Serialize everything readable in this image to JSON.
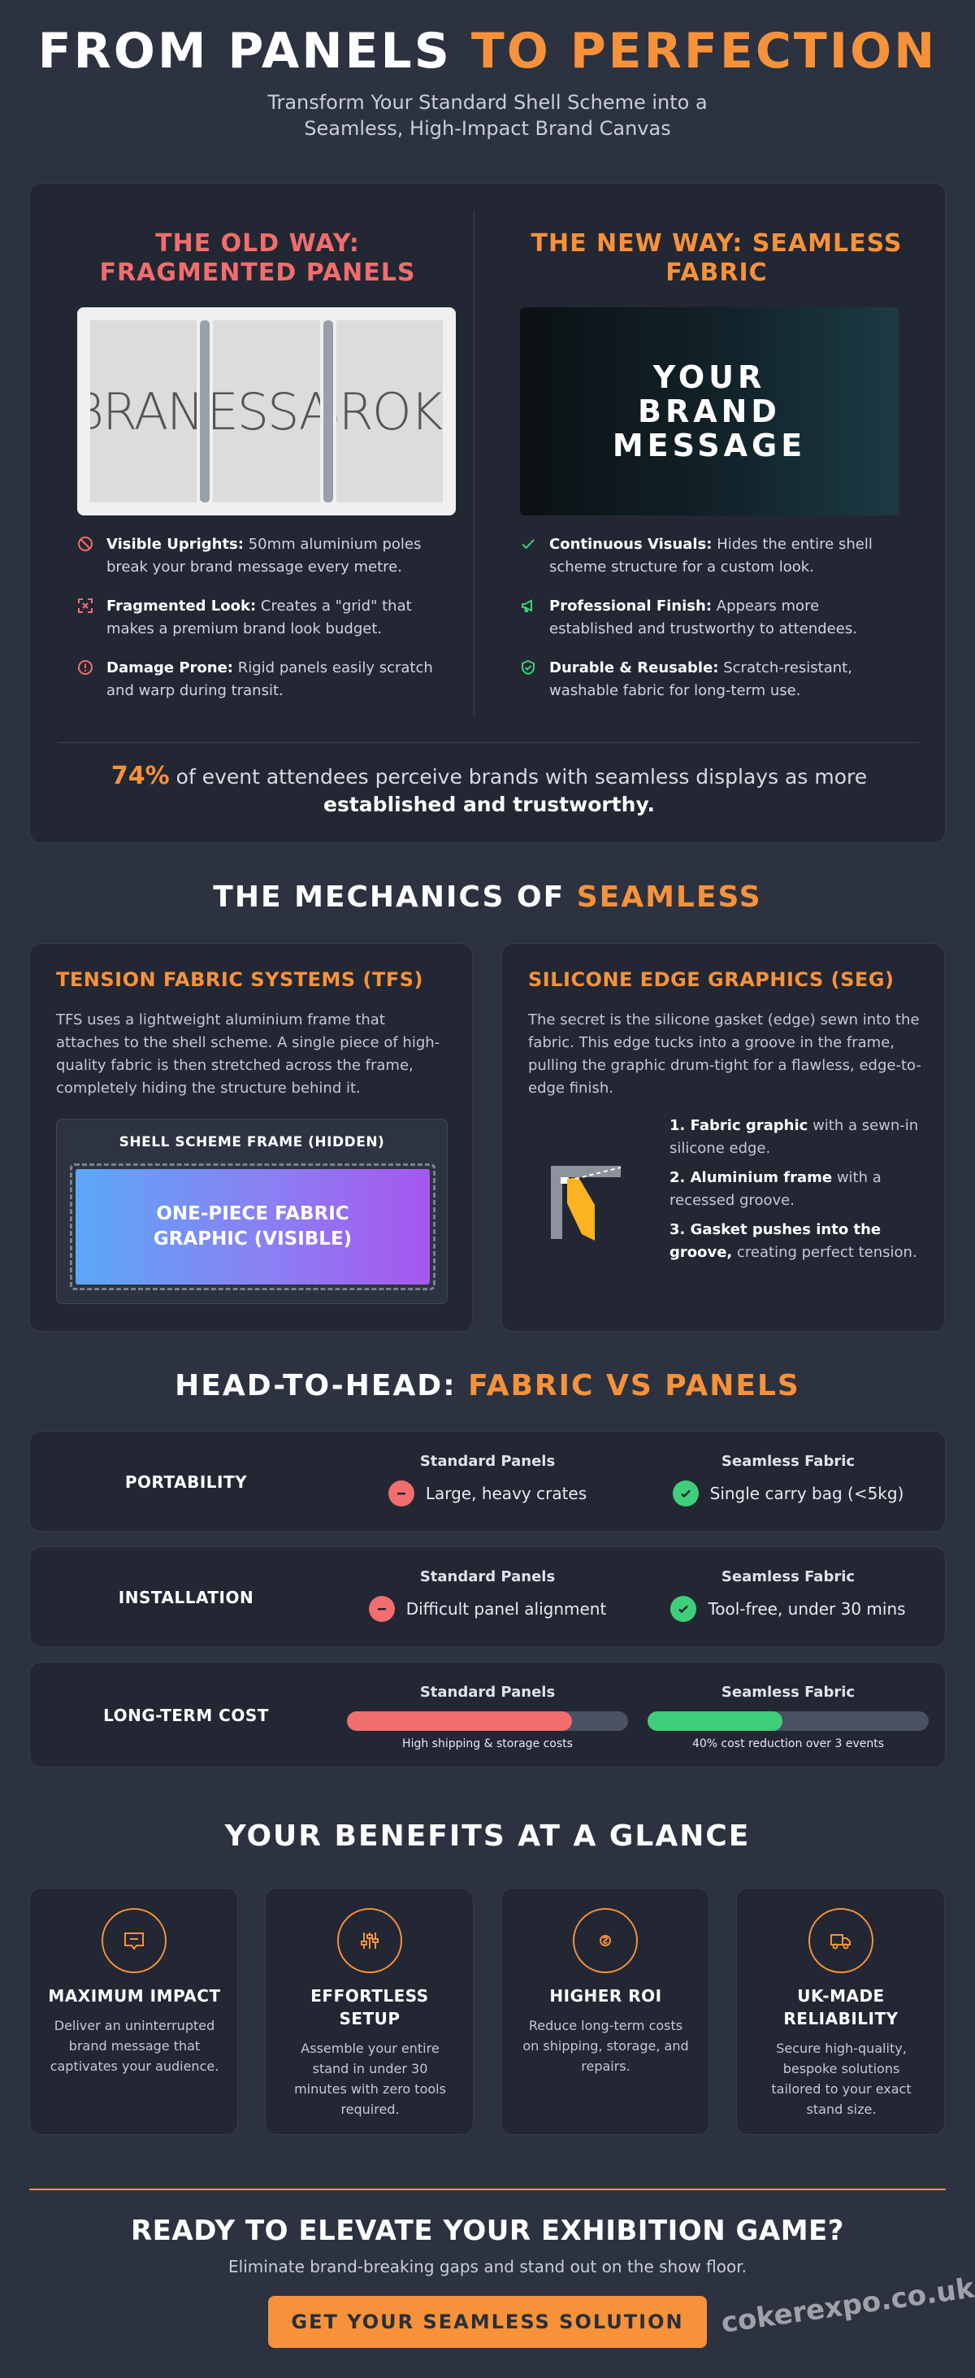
{
  "hero": {
    "title_main": "FROM PANELS ",
    "title_accent": "TO PERFECTION",
    "subtitle": "Transform Your Standard Shell Scheme into a Seamless, High-Impact Brand Canvas"
  },
  "comparison": {
    "old": {
      "title": "THE OLD WAY: FRAGMENTED PANELS",
      "panel_text": [
        "BRANI",
        "MESSAG",
        "BROKE"
      ],
      "features": [
        {
          "icon": "ban-icon",
          "title": "Visible Uprights:",
          "text": "50mm aluminium poles break your brand message every metre."
        },
        {
          "icon": "fragment-icon",
          "title": "Fragmented Look:",
          "text": "Creates a \"grid\" that makes a premium brand look budget."
        },
        {
          "icon": "alert-icon",
          "title": "Damage Prone:",
          "text": "Rigid panels easily scratch and warp during transit."
        }
      ]
    },
    "new": {
      "title": "THE NEW WAY: SEAMLESS FABRIC",
      "visual_text": "YOUR BRAND MESSAGE",
      "features": [
        {
          "icon": "check-icon",
          "title": "Continuous Visuals:",
          "text": "Hides the entire shell scheme structure for a custom look."
        },
        {
          "icon": "megaphone-icon",
          "title": "Professional Finish:",
          "text": "Appears more established and trustworthy to attendees."
        },
        {
          "icon": "shield-check-icon",
          "title": "Durable & Reusable:",
          "text": "Scratch-resistant, washable fabric for long-term use."
        }
      ]
    },
    "stat": {
      "percent": "74%",
      "text": " of event attendees perceive brands with seamless displays as more ",
      "emphasis": "established and trustworthy."
    }
  },
  "mechanics": {
    "title_main": "THE MECHANICS OF ",
    "title_accent": "SEAMLESS",
    "tfs": {
      "title": "TENSION FABRIC SYSTEMS (TFS)",
      "body": "TFS uses a lightweight aluminium frame that attaches to the shell scheme. A single piece of high-quality fabric is then stretched across the frame, completely hiding the structure behind it.",
      "frame_label": "SHELL SCHEME FRAME (HIDDEN)",
      "fabric_label": "ONE-PIECE FABRIC GRAPHIC (VISIBLE)"
    },
    "seg": {
      "title": "SILICONE EDGE GRAPHICS (SEG)",
      "body": "The secret is the silicone gasket (edge) sewn into the fabric. This edge tucks into a groove in the frame, pulling the graphic drum-tight for a flawless, edge-to-edge finish.",
      "steps": [
        {
          "bold": "1. Fabric graphic",
          "text": " with a sewn-in silicone edge."
        },
        {
          "bold": "2. Aluminium frame",
          "text": " with a recessed groove."
        },
        {
          "bold": "3. Gasket pushes into the groove,",
          "text": " creating perfect tension."
        }
      ]
    }
  },
  "h2h": {
    "title_main": "HEAD-TO-HEAD: ",
    "title_accent": "FABRIC VS PANELS",
    "std_header": "Standard Panels",
    "fab_header": "Seamless Fabric",
    "rows": [
      {
        "label": "PORTABILITY",
        "std": "Large, heavy crates",
        "fab": "Single carry bag (<5kg)"
      },
      {
        "label": "INSTALLATION",
        "std": "Difficult panel alignment",
        "fab": "Tool-free, under 30 mins"
      }
    ],
    "cost": {
      "label": "LONG-TERM COST",
      "std_level": 0.8,
      "fab_level": 0.48,
      "std_note": "High shipping & storage costs",
      "fab_note": "40% cost reduction over 3 events",
      "std_color": "#f26d6d",
      "fab_color": "#3fcf7a"
    }
  },
  "benefits": {
    "title": "YOUR BENEFITS AT A GLANCE",
    "items": [
      {
        "icon": "message-icon",
        "title": "MAXIMUM IMPACT",
        "body": "Deliver an uninterrupted brand message that captivates your audience."
      },
      {
        "icon": "sliders-icon",
        "title": "EFFORTLESS SETUP",
        "body": "Assemble your entire stand in under 30 minutes with zero tools required."
      },
      {
        "icon": "coin-icon",
        "title": "HIGHER ROI",
        "body": "Reduce long-term costs on shipping, storage, and repairs."
      },
      {
        "icon": "truck-icon",
        "title": "UK-MADE RELIABILITY",
        "body": "Secure high-quality, bespoke solutions tailored to your exact stand size."
      }
    ]
  },
  "cta": {
    "title": "READY TO ELEVATE YOUR EXHIBITION GAME?",
    "subtitle": "Eliminate brand-breaking gaps and stand out on the show floor.",
    "button": "GET YOUR SEAMLESS SOLUTION",
    "watermark": "cokerexpo.co.uk"
  },
  "colors": {
    "background": "#2c3240",
    "card": "#222733",
    "accent": "#f7923a",
    "bad": "#f26d6d",
    "good": "#3fcf7a"
  }
}
